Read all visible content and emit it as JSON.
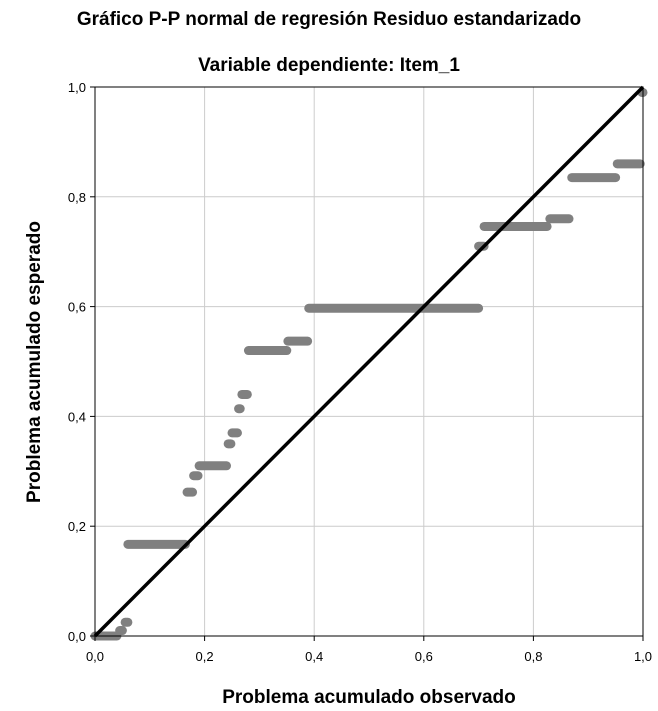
{
  "chart_data": {
    "type": "scatter",
    "title": "Gráfico P-P normal de regresión Residuo estandarizado",
    "subtitle": "Variable dependiente: Item_1",
    "xlabel": "Problema acumulado observado",
    "ylabel": "Problema acumulado esperado",
    "xlim": [
      0,
      1
    ],
    "ylim": [
      0,
      1
    ],
    "xticks": [
      "0,0",
      "0,2",
      "0,4",
      "0,6",
      "0,8",
      "1,0"
    ],
    "yticks": [
      "0,0",
      "0,2",
      "0,4",
      "0,6",
      "0,8",
      "1,0"
    ],
    "grid": true,
    "colors": {
      "points": "#808080",
      "reference_line": "#000000",
      "grid": "#cccccc"
    },
    "reference_line": {
      "from": [
        0,
        0
      ],
      "to": [
        1,
        1
      ]
    },
    "segments": [
      {
        "x0": 0.0,
        "x1": 0.04,
        "y": 0.0
      },
      {
        "x0": 0.045,
        "x1": 0.05,
        "y": 0.01
      },
      {
        "x0": 0.055,
        "x1": 0.06,
        "y": 0.025
      },
      {
        "x0": 0.06,
        "x1": 0.165,
        "y": 0.167
      },
      {
        "x0": 0.168,
        "x1": 0.178,
        "y": 0.262
      },
      {
        "x0": 0.18,
        "x1": 0.188,
        "y": 0.292
      },
      {
        "x0": 0.19,
        "x1": 0.24,
        "y": 0.31
      },
      {
        "x0": 0.243,
        "x1": 0.248,
        "y": 0.35
      },
      {
        "x0": 0.25,
        "x1": 0.26,
        "y": 0.37
      },
      {
        "x0": 0.262,
        "x1": 0.265,
        "y": 0.414
      },
      {
        "x0": 0.268,
        "x1": 0.278,
        "y": 0.44
      },
      {
        "x0": 0.28,
        "x1": 0.35,
        "y": 0.52
      },
      {
        "x0": 0.352,
        "x1": 0.388,
        "y": 0.537
      },
      {
        "x0": 0.39,
        "x1": 0.7,
        "y": 0.597
      },
      {
        "x0": 0.7,
        "x1": 0.71,
        "y": 0.71
      },
      {
        "x0": 0.71,
        "x1": 0.825,
        "y": 0.746
      },
      {
        "x0": 0.83,
        "x1": 0.865,
        "y": 0.76
      },
      {
        "x0": 0.87,
        "x1": 0.95,
        "y": 0.835
      },
      {
        "x0": 0.953,
        "x1": 0.995,
        "y": 0.86
      },
      {
        "x0": 0.998,
        "x1": 1.0,
        "y": 0.99
      }
    ]
  }
}
